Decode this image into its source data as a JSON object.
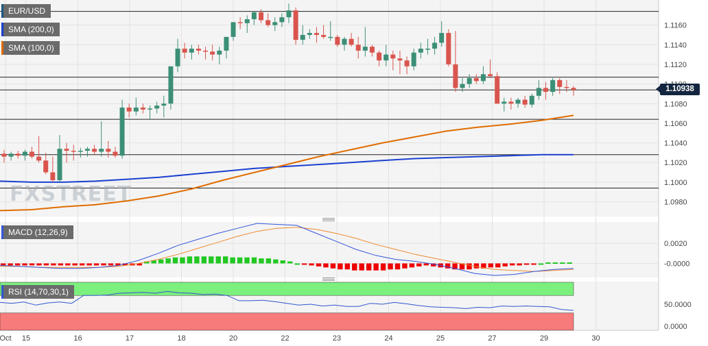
{
  "legends": {
    "symbol": "EUR/USD",
    "sma200": "SMA (200,0)",
    "sma100": "SMA (100,0)",
    "macd": "MACD (12,26,9)",
    "rsi": "RSI (14,70,30,1)"
  },
  "watermark": "FXSTREET",
  "current_price": "1.10938",
  "colors": {
    "up": "#3c8f77",
    "down": "#d9554e",
    "sma200": "#1a3fd1",
    "sma100": "#e06c00",
    "macd_line": "#3455d9",
    "signal_line": "#f08a2e",
    "hist_pos": "#22c822",
    "hist_neg": "#ee0000",
    "rsi_line": "#3055d0",
    "rsi_overbought": "#7cf07c",
    "rsi_oversold": "#f77b7b",
    "price_tag": "#14263f"
  },
  "chart_data": [
    {
      "type": "candlestick",
      "title": "EUR/USD",
      "ylim": [
        1.0965,
        1.118
      ],
      "y_ticks": [
        "1.1160",
        "1.1140",
        "1.1120",
        "1.1100",
        "1.1080",
        "1.1060",
        "1.1040",
        "1.1020",
        "1.1000",
        "1.0980"
      ],
      "x_tick_labels": [
        "Oct",
        "15",
        "16",
        "17",
        "18",
        "20",
        "22",
        "23",
        "24",
        "25",
        "27",
        "29",
        "30"
      ],
      "horizontal_levels": [
        1.1174,
        1.1107,
        1.1094,
        1.1064,
        1.1028,
        1.0994
      ],
      "candles": [
        [
          1.1029,
          1.1033,
          1.102,
          1.1026
        ],
        [
          1.1026,
          1.1031,
          1.1022,
          1.1029
        ],
        [
          1.1029,
          1.1032,
          1.1024,
          1.1027
        ],
        [
          1.1027,
          1.1033,
          1.1022,
          1.1031
        ],
        [
          1.1031,
          1.1036,
          1.1024,
          1.1026
        ],
        [
          1.1026,
          1.1047,
          1.102,
          1.1022
        ],
        [
          1.1022,
          1.103,
          1.1008,
          1.101
        ],
        [
          1.101,
          1.1026,
          1.1,
          1.1002
        ],
        [
          1.1002,
          1.1048,
          1.1,
          1.1034
        ],
        [
          1.1034,
          1.104,
          1.102,
          1.1032
        ],
        [
          1.1032,
          1.1038,
          1.1022,
          1.1031
        ],
        [
          1.1031,
          1.1035,
          1.1025,
          1.1032
        ],
        [
          1.1032,
          1.1036,
          1.1026,
          1.1034
        ],
        [
          1.1034,
          1.1038,
          1.1028,
          1.1031
        ],
        [
          1.1031,
          1.1062,
          1.1026,
          1.1034
        ],
        [
          1.1034,
          1.1042,
          1.1025,
          1.1031
        ],
        [
          1.1031,
          1.1036,
          1.1025,
          1.1027
        ],
        [
          1.1027,
          1.1084,
          1.1024,
          1.1076
        ],
        [
          1.1076,
          1.108,
          1.1066,
          1.1072
        ],
        [
          1.1072,
          1.1086,
          1.1068,
          1.1076
        ],
        [
          1.1076,
          1.108,
          1.107,
          1.1074
        ],
        [
          1.1074,
          1.1078,
          1.1064,
          1.1075
        ],
        [
          1.1075,
          1.1082,
          1.107,
          1.1078
        ],
        [
          1.1078,
          1.1088,
          1.1066,
          1.108
        ],
        [
          1.108,
          1.1118,
          1.1074,
          1.1118
        ],
        [
          1.1118,
          1.1146,
          1.1112,
          1.1136
        ],
        [
          1.1136,
          1.1142,
          1.1126,
          1.1132
        ],
        [
          1.1132,
          1.114,
          1.1125,
          1.1136
        ],
        [
          1.1136,
          1.114,
          1.113,
          1.1134
        ],
        [
          1.1134,
          1.1138,
          1.1125,
          1.1133
        ],
        [
          1.1133,
          1.114,
          1.1124,
          1.113
        ],
        [
          1.113,
          1.1138,
          1.112,
          1.1134
        ],
        [
          1.1134,
          1.1148,
          1.1126,
          1.1148
        ],
        [
          1.1148,
          1.1163,
          1.1144,
          1.1163
        ],
        [
          1.1163,
          1.1168,
          1.1156,
          1.1162
        ],
        [
          1.1162,
          1.117,
          1.1152,
          1.1166
        ],
        [
          1.1166,
          1.1174,
          1.116,
          1.1173
        ],
        [
          1.1173,
          1.1176,
          1.1162,
          1.1165
        ],
        [
          1.1165,
          1.1172,
          1.1158,
          1.116
        ],
        [
          1.116,
          1.1168,
          1.1154,
          1.1163
        ],
        [
          1.1163,
          1.1172,
          1.1158,
          1.1168
        ],
        [
          1.1168,
          1.1182,
          1.1162,
          1.1175
        ],
        [
          1.1175,
          1.1178,
          1.114,
          1.1145
        ],
        [
          1.1145,
          1.116,
          1.114,
          1.115
        ],
        [
          1.115,
          1.1156,
          1.1146,
          1.1152
        ],
        [
          1.1152,
          1.1158,
          1.1142,
          1.115
        ],
        [
          1.115,
          1.116,
          1.1146,
          1.1148
        ],
        [
          1.1148,
          1.1164,
          1.1144,
          1.1148
        ],
        [
          1.1148,
          1.115,
          1.1138,
          1.114
        ],
        [
          1.114,
          1.1148,
          1.1134,
          1.1146
        ],
        [
          1.1146,
          1.1152,
          1.1138,
          1.114
        ],
        [
          1.114,
          1.1148,
          1.1126,
          1.1134
        ],
        [
          1.1134,
          1.1158,
          1.1128,
          1.1138
        ],
        [
          1.1138,
          1.114,
          1.1128,
          1.1132
        ],
        [
          1.1132,
          1.1134,
          1.1118,
          1.1124
        ],
        [
          1.1124,
          1.114,
          1.1118,
          1.113
        ],
        [
          1.113,
          1.1134,
          1.1114,
          1.1126
        ],
        [
          1.1126,
          1.1134,
          1.111,
          1.1124
        ],
        [
          1.1124,
          1.1128,
          1.111,
          1.1118
        ],
        [
          1.1118,
          1.1136,
          1.1114,
          1.1132
        ],
        [
          1.1132,
          1.1142,
          1.1126,
          1.1136
        ],
        [
          1.1136,
          1.1146,
          1.113,
          1.1136
        ],
        [
          1.1136,
          1.1148,
          1.113,
          1.1142
        ],
        [
          1.1142,
          1.1164,
          1.1138,
          1.1152
        ],
        [
          1.1152,
          1.1156,
          1.1118,
          1.112
        ],
        [
          1.112,
          1.1154,
          1.1092,
          1.1096
        ],
        [
          1.1096,
          1.1106,
          1.1092,
          1.11
        ],
        [
          1.11,
          1.111,
          1.1096,
          1.1106
        ],
        [
          1.1106,
          1.111,
          1.11,
          1.1103
        ],
        [
          1.1103,
          1.1118,
          1.11,
          1.111
        ],
        [
          1.111,
          1.1125,
          1.1106,
          1.1108
        ],
        [
          1.1108,
          1.1112,
          1.108,
          1.108
        ],
        [
          1.108,
          1.1086,
          1.1072,
          1.1082
        ],
        [
          1.1082,
          1.1086,
          1.1074,
          1.108
        ],
        [
          1.108,
          1.1086,
          1.1076,
          1.1084
        ],
        [
          1.1084,
          1.1088,
          1.1076,
          1.1079
        ],
        [
          1.1079,
          1.109,
          1.1076,
          1.1088
        ],
        [
          1.1088,
          1.1104,
          1.1084,
          1.1096
        ],
        [
          1.1096,
          1.1102,
          1.1084,
          1.1092
        ],
        [
          1.1092,
          1.1106,
          1.1088,
          1.1104
        ],
        [
          1.1104,
          1.1106,
          1.109,
          1.1097
        ],
        [
          1.1097,
          1.1104,
          1.1092,
          1.1096
        ],
        [
          1.1096,
          1.1098,
          1.1088,
          1.1094
        ]
      ],
      "series": [
        {
          "name": "SMA (200,0)",
          "values": [
            1.1001,
            1.1,
            1.1,
            1.1001,
            1.1003,
            1.1005,
            1.1008,
            1.1011,
            1.1014,
            1.1016,
            1.1018,
            1.102,
            1.1022,
            1.1024,
            1.1025,
            1.1026,
            1.1027,
            1.1028,
            1.1028
          ]
        },
        {
          "name": "SMA (100,0)",
          "values": [
            1.0971,
            1.0972,
            1.0975,
            1.0977,
            1.0981,
            1.0986,
            1.0993,
            1.1002,
            1.101,
            1.1018,
            1.1026,
            1.1033,
            1.104,
            1.1046,
            1.1052,
            1.1056,
            1.1059,
            1.1063,
            1.1068
          ]
        }
      ]
    },
    {
      "type": "line",
      "title": "MACD (12,26,9)",
      "y_ticks": [
        "0.0020",
        "-0.0000"
      ],
      "ylim": [
        -0.0012,
        0.004
      ],
      "series": [
        {
          "name": "MACD",
          "values": [
            -0.0002,
            -0.0003,
            -0.0004,
            -0.0005,
            -0.0005,
            -0.0004,
            -0.0002,
            0.0003,
            0.001,
            0.0018,
            0.0024,
            0.003,
            0.0035,
            0.004,
            0.0039,
            0.0038,
            0.003,
            0.0022,
            0.0014,
            0.0008,
            0.0004,
            0.0002,
            -0.0001,
            -0.0005,
            -0.001,
            -0.0012,
            -0.0011,
            -0.0008,
            -0.0006,
            -0.0005
          ]
        },
        {
          "name": "Signal",
          "values": [
            -0.0003,
            -0.0003,
            -0.0004,
            -0.0004,
            -0.0004,
            -0.0004,
            -0.0003,
            0.0,
            0.0004,
            0.0009,
            0.0015,
            0.0021,
            0.0027,
            0.0032,
            0.0035,
            0.0036,
            0.0034,
            0.003,
            0.0025,
            0.0019,
            0.0014,
            0.0009,
            0.0005,
            0.0001,
            -0.0003,
            -0.0006,
            -0.0007,
            -0.0008,
            -0.0007,
            -0.0006
          ]
        },
        {
          "name": "Histogram",
          "values": [
            -0.0002,
            -0.0002,
            -0.0002,
            -0.0002,
            -0.0002,
            -0.0002,
            -0.0002,
            -0.0002,
            -0.0002,
            -0.0002,
            -0.0002,
            -0.0002,
            -0.0002,
            -0.0002,
            -0.0002,
            -0.0002,
            -0.0002,
            -0.0002,
            -0.0002,
            -0.0002,
            0.0002,
            0.0003,
            0.0004,
            0.0005,
            0.0006,
            0.0006,
            0.0007,
            0.0007,
            0.0007,
            0.0007,
            0.0007,
            0.0007,
            0.0006,
            0.0006,
            0.0006,
            0.0006,
            0.0005,
            0.0005,
            0.0004,
            0.0003,
            0.0002,
            0.0,
            -0.0001,
            -0.0002,
            -0.0003,
            -0.0004,
            -0.0005,
            -0.0006,
            -0.0006,
            -0.0007,
            -0.0007,
            -0.0007,
            -0.0007,
            -0.0007,
            -0.0006,
            -0.0006,
            -0.0005,
            -0.0004,
            -0.0003,
            -0.0002,
            -0.0003,
            -0.0004,
            -0.0005,
            -0.0006,
            -0.0006,
            -0.0006,
            -0.0005,
            -0.0005,
            -0.0004,
            -0.0004,
            -0.0003,
            -0.0002,
            -0.0002,
            -0.0001,
            -0.0001,
            0.0,
            0.0001,
            0.0001,
            0.0001,
            0.0001
          ]
        }
      ]
    },
    {
      "type": "line",
      "title": "RSI (14,70,30,1)",
      "y_ticks": [
        "50.0000",
        "0.0000"
      ],
      "ylim": [
        0,
        100
      ],
      "bands": {
        "overbought": 70,
        "oversold": 30
      },
      "series": [
        {
          "name": "RSI",
          "values": [
            54,
            52,
            55,
            48,
            53,
            55,
            52,
            70,
            70,
            71,
            75,
            76,
            77,
            75,
            79,
            76,
            75,
            72,
            73,
            70,
            58,
            58,
            59,
            56,
            52,
            48,
            50,
            46,
            48,
            45,
            45,
            52,
            50,
            54,
            51,
            47,
            44,
            43,
            42,
            40,
            43,
            42,
            46,
            45,
            46,
            45,
            44,
            38,
            36
          ]
        }
      ]
    }
  ]
}
